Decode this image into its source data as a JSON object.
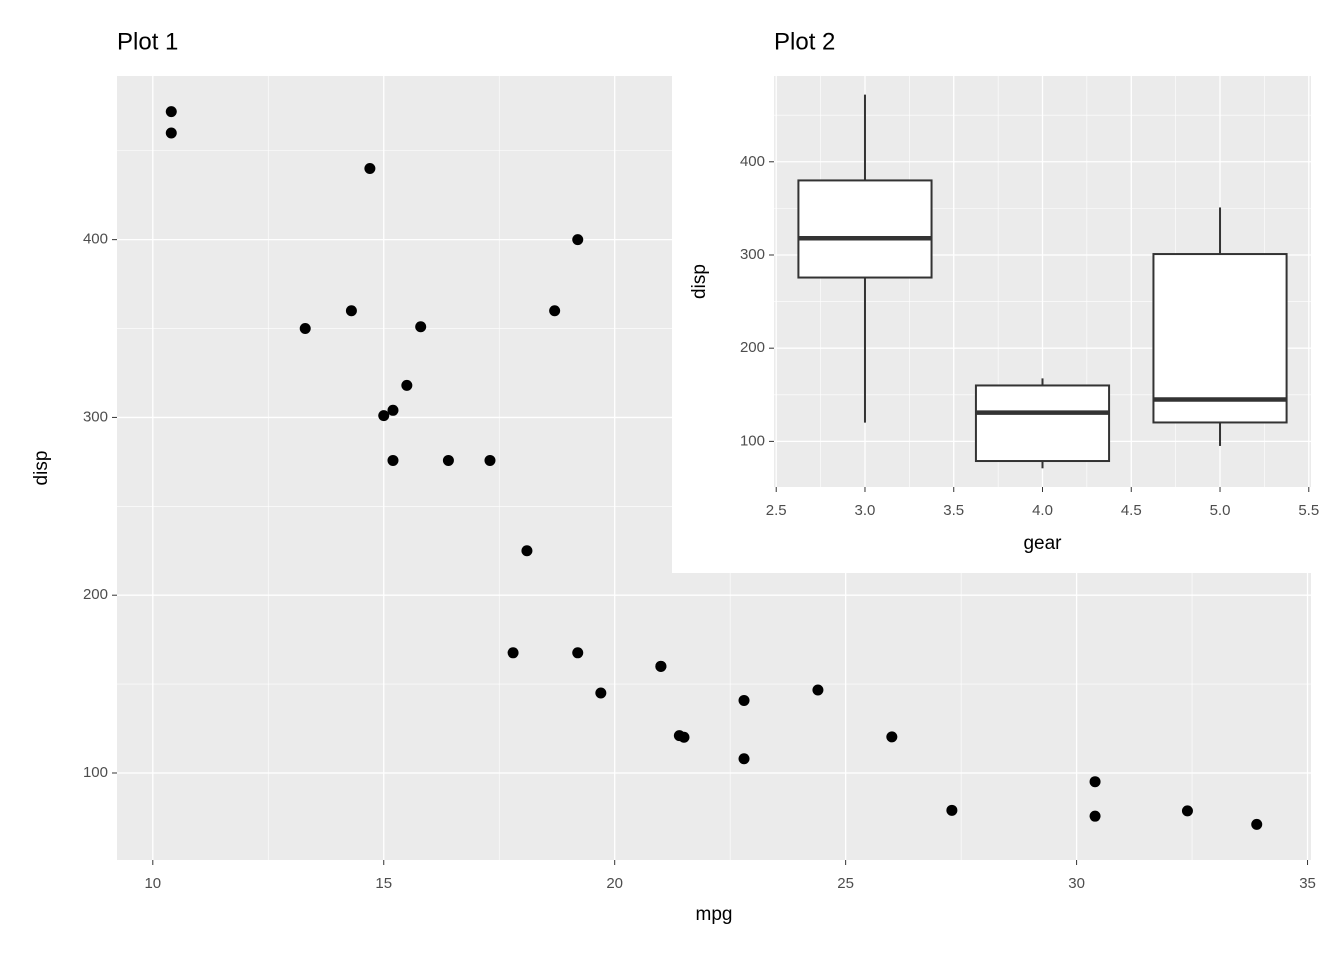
{
  "chart_data": [
    {
      "type": "scatter",
      "title": "Plot 1",
      "x_label": "mpg",
      "y_label": "disp",
      "x": [
        21,
        21,
        22.8,
        18.7,
        18.1,
        14.3,
        24.4,
        22.8,
        19.2,
        17.8,
        16.4,
        17.3,
        15.2,
        10.4,
        10.4,
        14.7,
        32.4,
        30.4,
        33.9,
        21.5,
        15.5,
        15.2,
        13.3,
        19.2,
        27.3,
        26,
        30.4,
        15.8,
        19.7,
        15,
        21.4
      ],
      "values": [
        160,
        160,
        108,
        360,
        225,
        360,
        146.7,
        140.8,
        167.6,
        167.6,
        275.8,
        275.8,
        275.8,
        472,
        460,
        440,
        78.7,
        75.7,
        71.1,
        120.1,
        318,
        304,
        350,
        400,
        79,
        120.3,
        95.1,
        351,
        145,
        301,
        121
      ],
      "color": "#000000",
      "xlim": [
        9.225,
        35.075
      ],
      "xticks": [
        10,
        15,
        20,
        25,
        30,
        35
      ],
      "minor_xticks": [
        12.5,
        17.5,
        22.5,
        27.5,
        32.5
      ],
      "ylim": [
        51.055,
        492.045
      ],
      "yticks": [
        100,
        200,
        300,
        400
      ],
      "minor_yticks": [
        150,
        250,
        350,
        450
      ],
      "grid": true
    },
    {
      "type": "box",
      "title": "Plot 2",
      "x_label": "gear",
      "y_label": "disp",
      "x": [
        3,
        4,
        5
      ],
      "min": [
        120.1,
        71.1,
        95.1
      ],
      "q1": [
        275.8,
        78.925,
        120.3
      ],
      "median": [
        318,
        130.9,
        145
      ],
      "q3": [
        380,
        160,
        301
      ],
      "max": [
        472,
        167.6,
        351
      ],
      "color": "#ffffff",
      "xlim": [
        2.4875,
        5.5125
      ],
      "xticks": [
        2.5,
        {
          "value": 3,
          "label": "3.0"
        },
        3.5,
        {
          "value": 4,
          "label": "4.0"
        },
        4.5,
        {
          "value": 5,
          "label": "5.0"
        },
        5.5
      ],
      "minor_xticks": [
        2.75,
        3.25,
        3.75,
        4.25,
        4.75,
        5.25
      ],
      "ylim": [
        51.055,
        492.045
      ],
      "yticks": [
        100,
        200,
        300,
        400
      ],
      "minor_yticks": [
        150,
        250,
        350,
        450
      ],
      "grid": true
    }
  ]
}
